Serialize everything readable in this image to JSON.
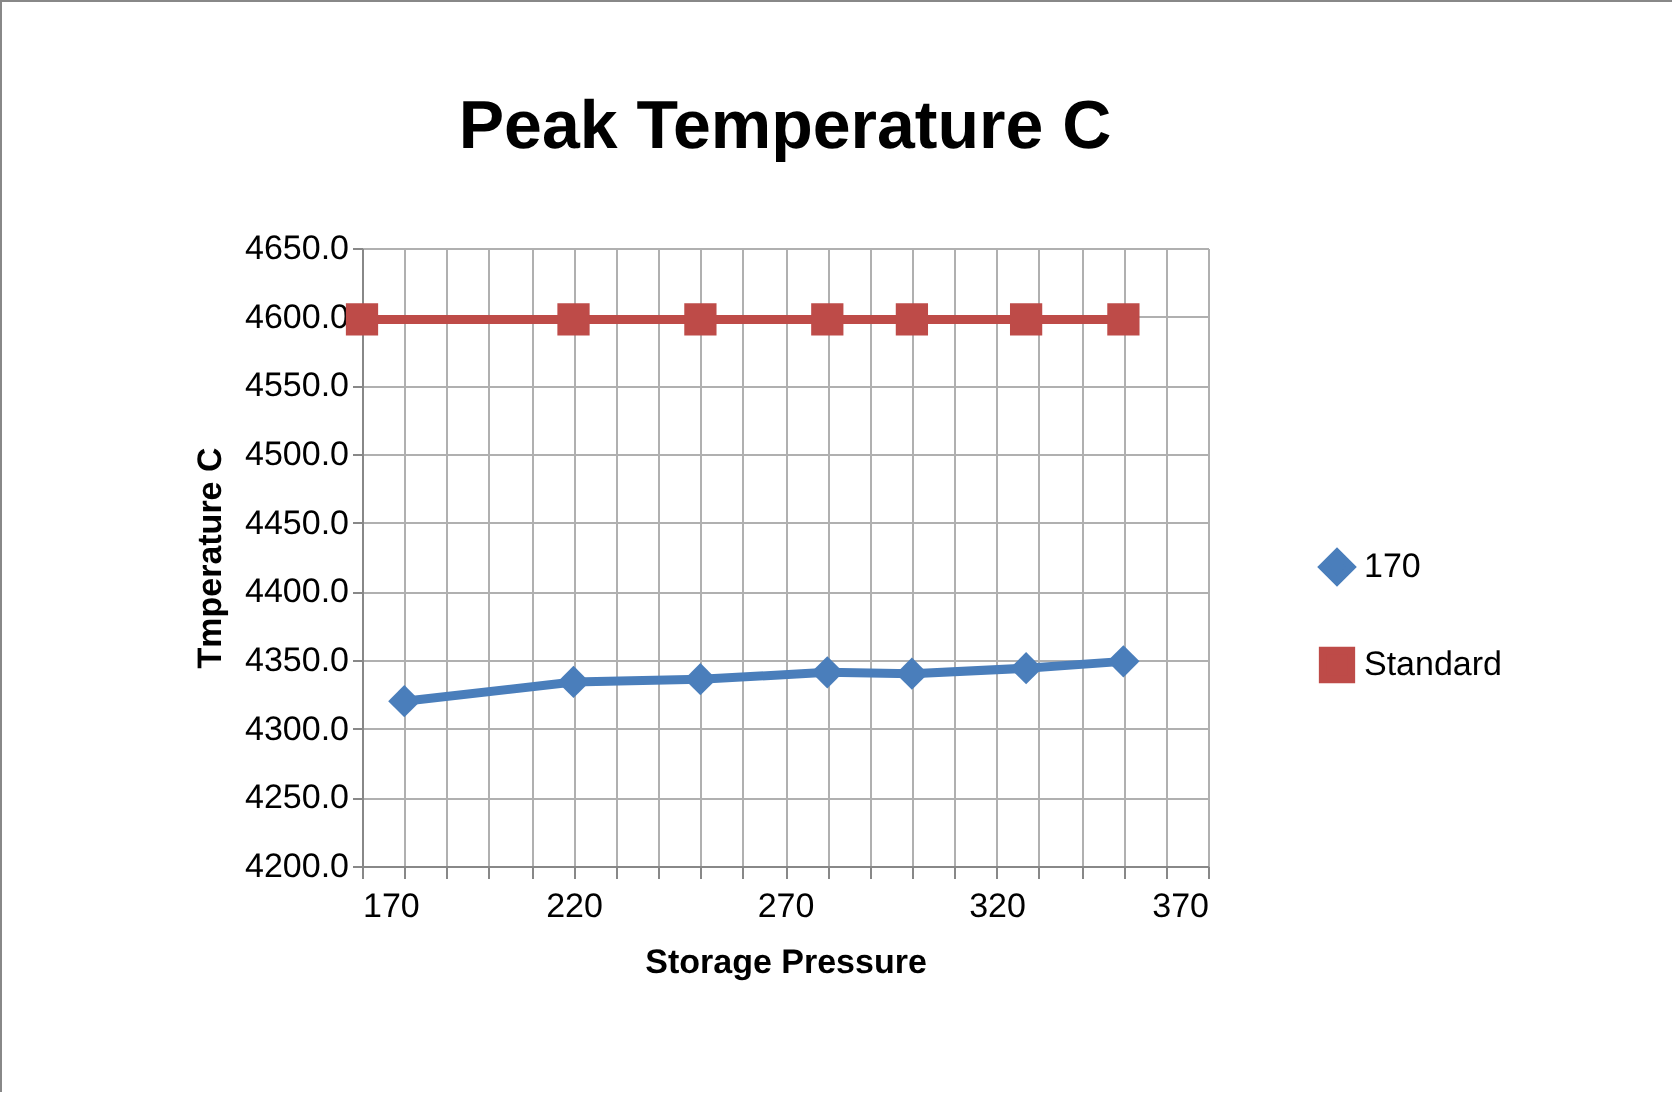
{
  "chart_data": {
    "type": "line",
    "title": "Peak Temperature C",
    "xlabel": "Storage Pressure",
    "ylabel": "Tmperature C",
    "series": [
      {
        "name": "170",
        "color": "#4a7ebb",
        "marker": "diamond",
        "x": [
          180,
          220,
          250,
          280,
          300,
          327,
          350
        ],
        "values": [
          4320,
          4334,
          4336,
          4341,
          4340,
          4344,
          4349
        ]
      },
      {
        "name": "Standard",
        "color": "#be4b48",
        "marker": "square",
        "x": [
          170,
          220,
          250,
          280,
          300,
          327,
          350
        ],
        "values": [
          4598,
          4598,
          4598,
          4598,
          4598,
          4598,
          4598
        ]
      }
    ],
    "xlim": [
      170,
      370
    ],
    "xticks": [
      170,
      {
        "value": 180,
        "label": null
      },
      {
        "value": 190,
        "label": null
      },
      {
        "value": 200,
        "label": null
      },
      {
        "value": 210,
        "label": null
      },
      220,
      {
        "value": 230,
        "label": null
      },
      {
        "value": 240,
        "label": null
      },
      {
        "value": 250,
        "label": null
      },
      {
        "value": 260,
        "label": null
      },
      270,
      {
        "value": 280,
        "label": null
      },
      {
        "value": 290,
        "label": null
      },
      {
        "value": 300,
        "label": null
      },
      {
        "value": 310,
        "label": null
      },
      320,
      {
        "value": 330,
        "label": null
      },
      {
        "value": 340,
        "label": null
      },
      {
        "value": 350,
        "label": null
      },
      {
        "value": 360,
        "label": null
      },
      370
    ],
    "ylim": [
      4200,
      4650
    ],
    "yticks": [
      {
        "value": 4200,
        "label": "4200.0"
      },
      {
        "value": 4250,
        "label": "4250.0"
      },
      {
        "value": 4300,
        "label": "4300.0"
      },
      {
        "value": 4350,
        "label": "4350.0"
      },
      {
        "value": 4400,
        "label": "4400.0"
      },
      {
        "value": 4450,
        "label": "4450.0"
      },
      {
        "value": 4500,
        "label": "4500.0"
      },
      {
        "value": 4550,
        "label": "4550.0"
      },
      {
        "value": 4600,
        "label": "4600.0"
      },
      {
        "value": 4650,
        "label": "4650.0"
      }
    ],
    "grid": true,
    "legend": "right",
    "line_style": "solid"
  }
}
